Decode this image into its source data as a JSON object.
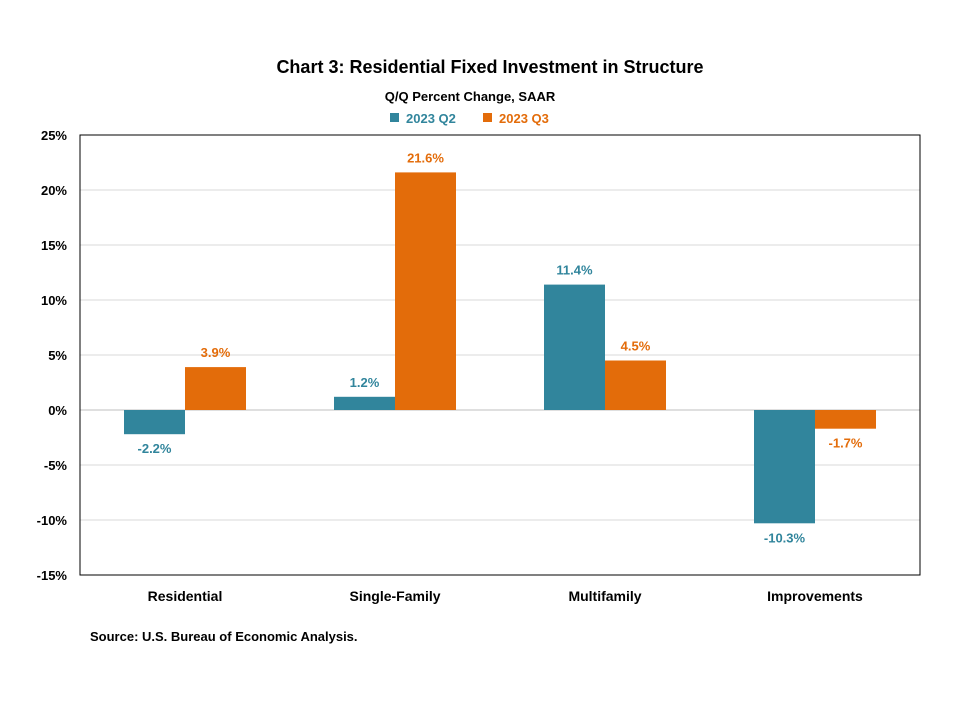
{
  "chart_data": {
    "type": "bar",
    "title": "Chart 3: Residential Fixed Investment in Structure",
    "subtitle": "Q/Q Percent Change, SAAR",
    "categories": [
      "Residential",
      "Single-Family",
      "Multifamily",
      "Improvements"
    ],
    "series": [
      {
        "name": "2023 Q2",
        "color": "#31859c",
        "values": [
          -2.2,
          1.2,
          11.4,
          -10.3
        ],
        "labels": [
          "-2.2%",
          "1.2%",
          "11.4%",
          "-10.3%"
        ]
      },
      {
        "name": "2023 Q3",
        "color": "#e36c0a",
        "values": [
          3.9,
          21.6,
          4.5,
          -1.7
        ],
        "labels": [
          "3.9%",
          "21.6%",
          "4.5%",
          "-1.7%"
        ]
      }
    ],
    "ylim": [
      -15,
      25
    ],
    "yticks": [
      25,
      20,
      15,
      10,
      5,
      0,
      -5,
      -10,
      -15
    ],
    "ytick_labels": [
      "25%",
      "20%",
      "15%",
      "10%",
      "5%",
      "0%",
      "-5%",
      "-10%",
      "-15%"
    ],
    "grid": true,
    "legend_position": "top-center",
    "source": "Source: U.S. Bureau of Economic Analysis."
  }
}
